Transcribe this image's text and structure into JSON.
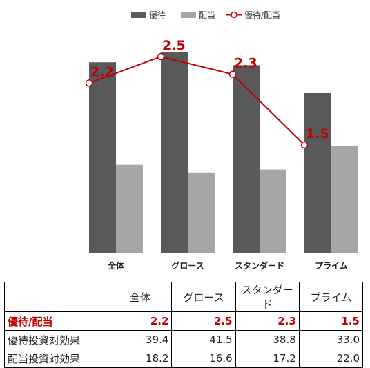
{
  "chart_data": {
    "type": "bar",
    "categories": [
      "全体",
      "グロース",
      "スタンダード",
      "プライム"
    ],
    "series": [
      {
        "name": "優待",
        "type": "bar",
        "color": "#595959",
        "values": [
          39.4,
          41.5,
          38.8,
          33.0
        ]
      },
      {
        "name": "配当",
        "type": "bar",
        "color": "#a6a6a6",
        "values": [
          18.2,
          16.6,
          17.2,
          22.0
        ]
      },
      {
        "name": "優待/配当",
        "type": "line",
        "color": "#c00000",
        "values": [
          2.2,
          2.5,
          2.3,
          1.5
        ]
      }
    ],
    "legend_position": "top-right",
    "grid": false
  },
  "table": {
    "headers": [
      "",
      "全体",
      "グロース",
      "スタンダード",
      "プライム"
    ],
    "rows": [
      {
        "label": "優待/配当",
        "values": [
          "2.2",
          "2.5",
          "2.3",
          "1.5"
        ]
      },
      {
        "label": "優待投資対効果",
        "values": [
          "39.4",
          "41.5",
          "38.8",
          "33.0"
        ]
      },
      {
        "label": "配当投資対効果",
        "values": [
          "18.2",
          "16.6",
          "17.2",
          "22.0"
        ]
      }
    ]
  }
}
